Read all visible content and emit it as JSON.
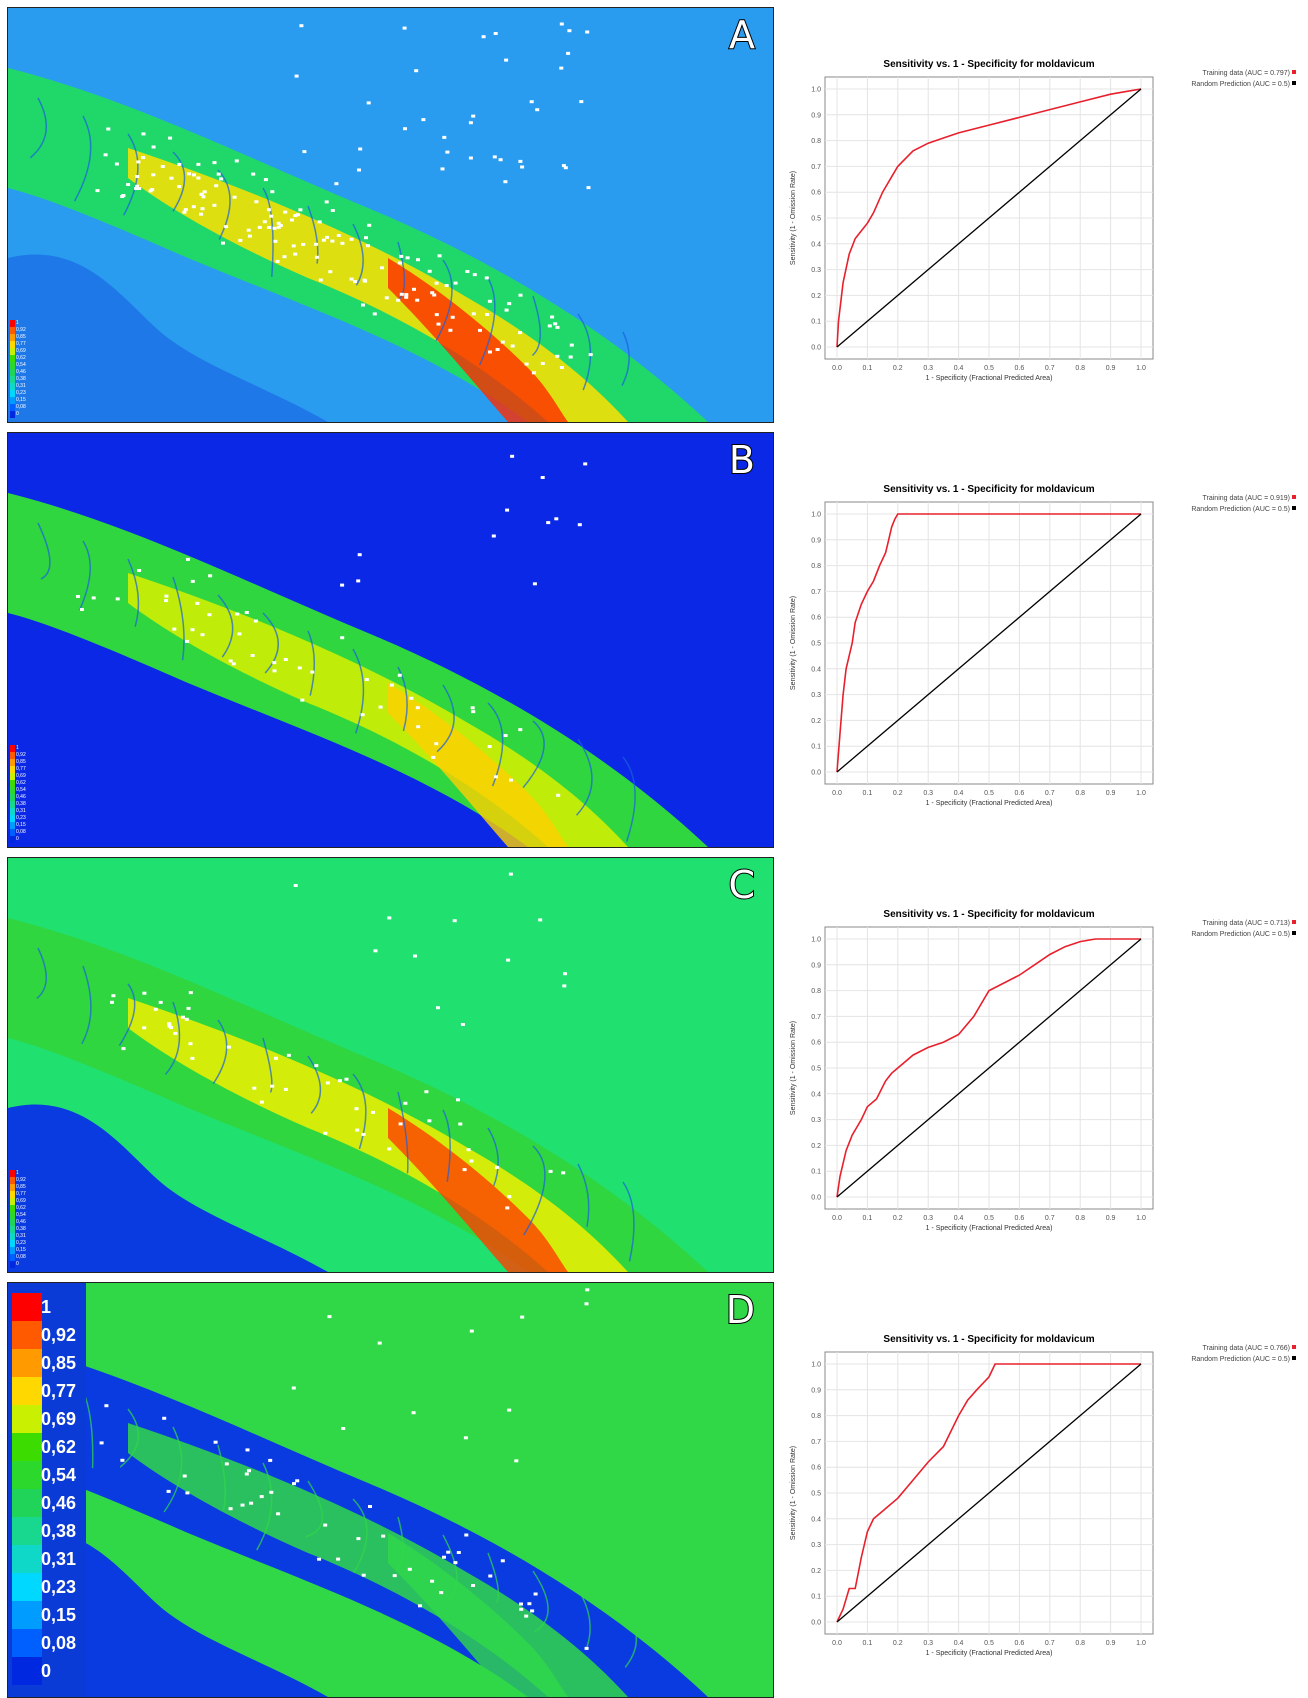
{
  "panels": [
    {
      "label": "A",
      "chart": 0
    },
    {
      "label": "B",
      "chart": 1
    },
    {
      "label": "C",
      "chart": 2
    },
    {
      "label": "D",
      "chart": 3
    }
  ],
  "legend": {
    "ticks": [
      "1",
      "0,92",
      "0,85",
      "0,77",
      "0,69",
      "0,62",
      "0,54",
      "0,46",
      "0,38",
      "0,31",
      "0,23",
      "0,15",
      "0,08",
      "0"
    ],
    "colors": [
      "#ff0000",
      "#ff5a00",
      "#ff9a00",
      "#ffd800",
      "#c8f000",
      "#3cdc00",
      "#2cd82c",
      "#20d45a",
      "#18d890",
      "#10d8c8",
      "#00d8ff",
      "#009cff",
      "#0060ff",
      "#0028e0"
    ]
  },
  "chart_data": [
    {
      "type": "line",
      "title": "Sensitivity vs. 1 - Specificity for moldavicum",
      "xlabel": "1 - Specificity (Fractional Predicted Area)",
      "ylabel": "Sensitivity (1 - Omission Rate)",
      "xlim": [
        0,
        1
      ],
      "ylim": [
        0,
        1
      ],
      "ticks": [
        "0.0",
        "0.1",
        "0.2",
        "0.3",
        "0.4",
        "0.5",
        "0.6",
        "0.7",
        "0.8",
        "0.9",
        "1.0"
      ],
      "grid": true,
      "legend_position": "top-right",
      "series": [
        {
          "name": "Training data (AUC = 0.797)",
          "color": "#e8202c",
          "x": [
            0,
            0.005,
            0.02,
            0.04,
            0.06,
            0.08,
            0.1,
            0.12,
            0.15,
            0.18,
            0.2,
            0.25,
            0.3,
            0.35,
            0.4,
            0.5,
            0.6,
            0.7,
            0.8,
            0.9,
            0.95,
            1.0
          ],
          "y": [
            0,
            0.1,
            0.25,
            0.36,
            0.42,
            0.45,
            0.48,
            0.52,
            0.6,
            0.66,
            0.7,
            0.76,
            0.79,
            0.81,
            0.83,
            0.86,
            0.89,
            0.92,
            0.95,
            0.98,
            0.99,
            1.0
          ]
        },
        {
          "name": "Random Prediction (AUC = 0.5)",
          "color": "#000000",
          "x": [
            0,
            1
          ],
          "y": [
            0,
            1
          ]
        }
      ]
    },
    {
      "type": "line",
      "title": "Sensitivity vs. 1 - Specificity for moldavicum",
      "xlabel": "1 - Specificity (Fractional Predicted Area)",
      "ylabel": "Sensitivity (1 - Omission Rate)",
      "xlim": [
        0,
        1
      ],
      "ylim": [
        0,
        1
      ],
      "ticks": [
        "0.0",
        "0.1",
        "0.2",
        "0.3",
        "0.4",
        "0.5",
        "0.6",
        "0.7",
        "0.8",
        "0.9",
        "1.0"
      ],
      "grid": true,
      "legend_position": "top-right",
      "series": [
        {
          "name": "Training data (AUC = 0.919)",
          "color": "#e8202c",
          "x": [
            0,
            0.01,
            0.02,
            0.03,
            0.05,
            0.06,
            0.08,
            0.1,
            0.12,
            0.14,
            0.16,
            0.17,
            0.18,
            0.19,
            0.2,
            1.0
          ],
          "y": [
            0,
            0.15,
            0.3,
            0.4,
            0.5,
            0.58,
            0.65,
            0.7,
            0.74,
            0.8,
            0.85,
            0.9,
            0.95,
            0.98,
            1.0,
            1.0
          ]
        },
        {
          "name": "Random Prediction (AUC = 0.5)",
          "color": "#000000",
          "x": [
            0,
            1
          ],
          "y": [
            0,
            1
          ]
        }
      ]
    },
    {
      "type": "line",
      "title": "Sensitivity vs. 1 - Specificity for moldavicum",
      "xlabel": "1 - Specificity (Fractional Predicted Area)",
      "ylabel": "Sensitivity (1 - Omission Rate)",
      "xlim": [
        0,
        1
      ],
      "ylim": [
        0,
        1
      ],
      "ticks": [
        "0.0",
        "0.1",
        "0.2",
        "0.3",
        "0.4",
        "0.5",
        "0.6",
        "0.7",
        "0.8",
        "0.9",
        "1.0"
      ],
      "grid": true,
      "legend_position": "top-right",
      "series": [
        {
          "name": "Training data (AUC = 0.713)",
          "color": "#e8202c",
          "x": [
            0,
            0.01,
            0.03,
            0.05,
            0.08,
            0.1,
            0.13,
            0.16,
            0.18,
            0.2,
            0.25,
            0.3,
            0.35,
            0.4,
            0.45,
            0.5,
            0.55,
            0.6,
            0.65,
            0.7,
            0.75,
            0.8,
            0.85,
            0.9,
            0.95,
            1.0
          ],
          "y": [
            0,
            0.08,
            0.18,
            0.24,
            0.3,
            0.35,
            0.38,
            0.45,
            0.48,
            0.5,
            0.55,
            0.58,
            0.6,
            0.63,
            0.7,
            0.8,
            0.83,
            0.86,
            0.9,
            0.94,
            0.97,
            0.99,
            1.0,
            1.0,
            1.0,
            1.0
          ]
        },
        {
          "name": "Random Prediction (AUC = 0.5)",
          "color": "#000000",
          "x": [
            0,
            1
          ],
          "y": [
            0,
            1
          ]
        }
      ]
    },
    {
      "type": "line",
      "title": "Sensitivity vs. 1 - Specificity for moldavicum",
      "xlabel": "1 - Specificity (Fractional Predicted Area)",
      "ylabel": "Sensitivity (1 - Omission Rate)",
      "xlim": [
        0,
        1
      ],
      "ylim": [
        0,
        1
      ],
      "ticks": [
        "0.0",
        "0.1",
        "0.2",
        "0.3",
        "0.4",
        "0.5",
        "0.6",
        "0.7",
        "0.8",
        "0.9",
        "1.0"
      ],
      "grid": true,
      "legend_position": "top-right",
      "series": [
        {
          "name": "Training data (AUC = 0.766)",
          "color": "#e8202c",
          "x": [
            0,
            0.02,
            0.04,
            0.06,
            0.08,
            0.1,
            0.12,
            0.15,
            0.2,
            0.25,
            0.3,
            0.35,
            0.4,
            0.43,
            0.46,
            0.5,
            0.52,
            0.6,
            0.7,
            0.8,
            0.9,
            1.0
          ],
          "y": [
            0,
            0.05,
            0.13,
            0.13,
            0.25,
            0.35,
            0.4,
            0.43,
            0.48,
            0.55,
            0.62,
            0.68,
            0.8,
            0.86,
            0.9,
            0.95,
            1.0,
            1.0,
            1.0,
            1.0,
            1.0,
            1.0
          ]
        },
        {
          "name": "Random Prediction (AUC = 0.5)",
          "color": "#000000",
          "x": [
            0,
            1
          ],
          "y": [
            0,
            1
          ]
        }
      ]
    }
  ]
}
